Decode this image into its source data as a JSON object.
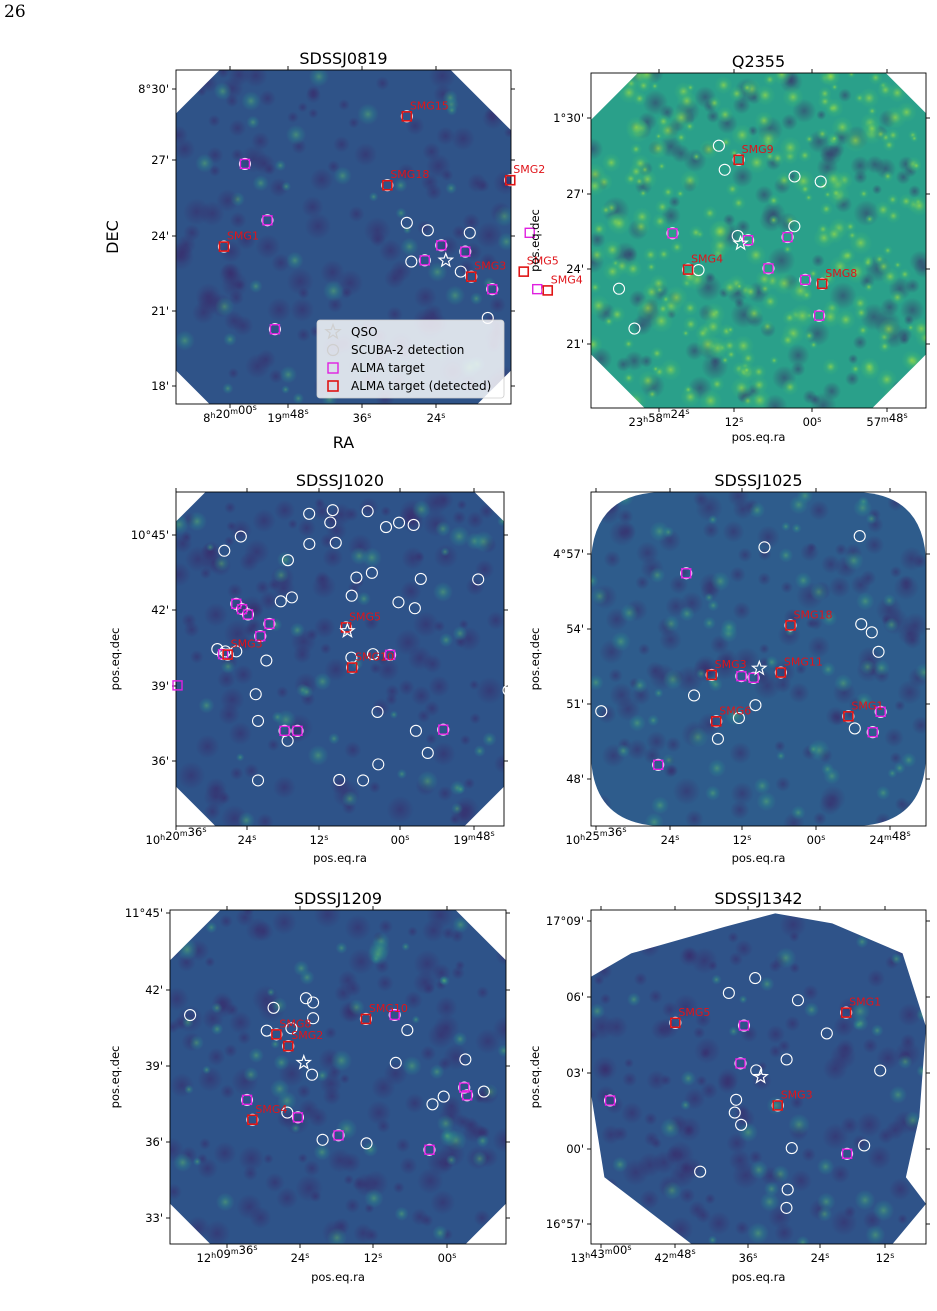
{
  "page_number": "26",
  "legend": {
    "qso": "QSO",
    "scuba": "SCUBA-2 detection",
    "alma": "ALMA target",
    "alma_det": "ALMA target (detected)"
  },
  "colors": {
    "map_base": "#2e5389",
    "alma_target": "#e020e0",
    "alma_detected": "#e01414",
    "smg_label": "#e0141a",
    "scuba": "#ffffff"
  },
  "chart_data": [
    {
      "type": "scatter",
      "title": "SDSSJ0819",
      "xlabel": "RA",
      "ylabel": "DEC",
      "xticks": [
        "8h20m00s",
        "19m48s",
        "36s",
        "24s"
      ],
      "yticks": [
        "8°30'",
        "27'",
        "24'",
        "21'",
        "18'"
      ],
      "ra_range_deg": [
        125.036,
        124.8125
      ],
      "dec_range_deg": [
        8.2833,
        8.55
      ],
      "qso": [
        124.856,
        8.398
      ],
      "scuba": [
        [
          124.882,
          8.428
        ],
        [
          124.868,
          8.422
        ],
        [
          124.84,
          8.42
        ],
        [
          124.879,
          8.397
        ],
        [
          124.846,
          8.389
        ],
        [
          124.828,
          8.352
        ]
      ],
      "alma": [
        [
          124.99,
          8.475
        ],
        [
          124.975,
          8.43
        ],
        [
          124.87,
          8.398
        ],
        [
          124.859,
          8.41
        ],
        [
          124.843,
          8.405
        ],
        [
          124.825,
          8.375
        ],
        [
          124.8,
          8.42
        ],
        [
          124.795,
          8.375
        ],
        [
          124.97,
          8.343
        ]
      ],
      "alma_det": [
        {
          "ra": 124.882,
          "dec": 8.513,
          "label": "SMG15"
        },
        {
          "ra": 124.895,
          "dec": 8.458,
          "label": "SMG18"
        },
        {
          "ra": 124.813,
          "dec": 8.462,
          "label": "SMG2"
        },
        {
          "ra": 125.004,
          "dec": 8.409,
          "label": "SMG1"
        },
        {
          "ra": 124.839,
          "dec": 8.385,
          "label": "SMG3"
        },
        {
          "ra": 124.804,
          "dec": 8.389,
          "label": "SMG5"
        },
        {
          "ra": 124.788,
          "dec": 8.374,
          "label": "SMG4"
        }
      ]
    },
    {
      "type": "scatter",
      "title": "Q2355",
      "xlabel": "pos.eq.ra",
      "ylabel": "pos.eq.dec",
      "xticks": [
        "23h58m24s",
        "12s",
        "00s",
        "57m48s"
      ],
      "yticks": [
        "1°30'",
        "27'",
        "24'",
        "21'"
      ],
      "ra_range_deg": [
        359.647,
        359.4065
      ],
      "dec_range_deg": [
        1.3106,
        1.5294
      ],
      "qso": [
        359.5396,
        1.4181
      ],
      "scuba": [
        [
          359.5552,
          1.4819
        ],
        [
          359.551,
          1.4662
        ],
        [
          359.5009,
          1.4618
        ],
        [
          359.4821,
          1.4585
        ],
        [
          359.5417,
          1.423
        ],
        [
          359.5698,
          1.4007
        ],
        [
          359.6269,
          1.3885
        ],
        [
          359.6158,
          1.3625
        ],
        [
          359.501,
          1.4293
        ]
      ],
      "alma": [
        [
          359.5885,
          1.4247
        ],
        [
          359.5342,
          1.4202
        ],
        [
          359.5059,
          1.4222
        ],
        [
          359.5196,
          1.4018
        ],
        [
          359.4932,
          1.3943
        ],
        [
          359.4832,
          1.3709
        ]
      ],
      "alma_det": [
        {
          "ra": 359.541,
          "dec": 1.4727,
          "label": "SMG9"
        },
        {
          "ra": 359.5773,
          "dec": 1.401,
          "label": "SMG4"
        },
        {
          "ra": 359.481,
          "dec": 1.3917,
          "label": "SMG8"
        }
      ]
    },
    {
      "type": "scatter",
      "title": "SDSSJ1020",
      "xlabel": "pos.eq.ra",
      "ylabel": "pos.eq.dec",
      "xticks": [
        "10h20m36s",
        "24s",
        "12s",
        "00s",
        "19m48s"
      ],
      "yticks": [
        "10°45'",
        "42'",
        "39'",
        "36'"
      ],
      "ra_range_deg": [
        155.1545,
        154.9385
      ],
      "dec_range_deg": [
        10.5493,
        10.7683
      ],
      "qso": [
        155.0416,
        10.6772
      ],
      "scuba": [
        [
          155.0668,
          10.754
        ],
        [
          155.0513,
          10.7564
        ],
        [
          155.0529,
          10.7483
        ],
        [
          155.0283,
          10.7557
        ],
        [
          155.0162,
          10.7453
        ],
        [
          155.0076,
          10.7482
        ],
        [
          154.998,
          10.7467
        ],
        [
          155.1118,
          10.7391
        ],
        [
          155.1227,
          10.7298
        ],
        [
          155.0667,
          10.7342
        ],
        [
          155.0493,
          10.735
        ],
        [
          155.0808,
          10.7236
        ],
        [
          155.0255,
          10.7153
        ],
        [
          155.0357,
          10.7122
        ],
        [
          154.9933,
          10.7113
        ],
        [
          154.9555,
          10.711
        ],
        [
          155.0782,
          10.6992
        ],
        [
          155.0855,
          10.6966
        ],
        [
          155.0388,
          10.7003
        ],
        [
          155.008,
          10.696
        ],
        [
          154.9972,
          10.6921
        ],
        [
          155.122,
          10.6638
        ],
        [
          155.1273,
          10.6653
        ],
        [
          155.1148,
          10.6638
        ],
        [
          155.039,
          10.6597
        ],
        [
          155.0248,
          10.662
        ],
        [
          155.095,
          10.6578
        ],
        [
          154.9355,
          10.6383
        ],
        [
          155.102,
          10.6357
        ],
        [
          155.0218,
          10.6241
        ],
        [
          155.1005,
          10.6182
        ],
        [
          154.9965,
          10.6117
        ],
        [
          155.081,
          10.6052
        ],
        [
          154.9887,
          10.5972
        ],
        [
          155.0213,
          10.5897
        ],
        [
          155.1005,
          10.5792
        ],
        [
          155.047,
          10.5795
        ],
        [
          155.0313,
          10.5792
        ]
      ],
      "alma": [
        [
          155.1148,
          10.695
        ],
        [
          155.111,
          10.6915
        ],
        [
          155.1071,
          10.688
        ],
        [
          155.093,
          10.6818
        ],
        [
          155.099,
          10.6738
        ],
        [
          155.0135,
          10.6615
        ],
        [
          155.083,
          10.6117
        ],
        [
          155.0745,
          10.6117
        ],
        [
          154.9785,
          10.6125
        ],
        [
          155.1235,
          10.662
        ]
      ],
      "alma_square_only": [
        [
          155.1535,
          10.6415
        ]
      ],
      "alma_det": [
        {
          "ra": 155.0425,
          "dec": 10.6795,
          "label": "SMG5"
        },
        {
          "ra": 155.0385,
          "dec": 10.6532,
          "label": "SMG10"
        },
        {
          "ra": 155.1205,
          "dec": 10.6617,
          "label": "SMG3"
        }
      ]
    },
    {
      "type": "scatter",
      "title": "SDSSJ1025",
      "xlabel": "pos.eq.ra",
      "ylabel": "pos.eq.dec",
      "xticks": [
        "10h25m36s",
        "24s",
        "12s",
        "00s",
        "24m48s"
      ],
      "yticks": [
        "4°57'",
        "54'",
        "51'",
        "48'"
      ],
      "ra_range_deg": [
        156.4125,
        156.1937
      ],
      "dec_range_deg": [
        4.7742,
        4.9953
      ],
      "qso": [
        156.3026,
        4.8785
      ],
      "scuba": [
        [
          156.2992,
          4.9587
        ],
        [
          156.237,
          4.9661
        ],
        [
          156.236,
          4.9078
        ],
        [
          156.2291,
          4.9024
        ],
        [
          156.2247,
          4.8895
        ],
        [
          156.3452,
          4.8606
        ],
        [
          156.3051,
          4.8542
        ],
        [
          156.3159,
          4.8457
        ],
        [
          156.4058,
          4.8502
        ],
        [
          156.3296,
          4.8319
        ],
        [
          156.2402,
          4.8388
        ]
      ],
      "alma": [
        [
          156.3503,
          4.9415
        ],
        [
          156.3143,
          4.8734
        ],
        [
          156.3063,
          4.8723
        ],
        [
          156.2233,
          4.8498
        ],
        [
          156.2285,
          4.8363
        ],
        [
          156.3686,
          4.8147
        ]
      ],
      "alma_det": [
        {
          "ra": 156.2822,
          "dec": 4.907,
          "label": "SMG18"
        },
        {
          "ra": 156.3337,
          "dec": 4.8742,
          "label": "SMG3"
        },
        {
          "ra": 156.2885,
          "dec": 4.8758,
          "label": "SMG11"
        },
        {
          "ra": 156.2444,
          "dec": 4.8468,
          "label": "SMG1"
        },
        {
          "ra": 156.3307,
          "dec": 4.8435,
          "label": "SMG6"
        }
      ]
    },
    {
      "type": "scatter",
      "title": "SDSSJ1209",
      "xlabel": "pos.eq.ra",
      "ylabel": "pos.eq.dec",
      "xticks": [
        "12h09m36s",
        "24s",
        "12s",
        "00s"
      ],
      "yticks": [
        "11°45'",
        "42'",
        "39'",
        "36'",
        "33'"
      ],
      "ra_range_deg": [
        182.4435,
        182.231
      ],
      "dec_range_deg": [
        11.5156,
        11.7492
      ],
      "qso": [
        182.3589,
        11.6424
      ],
      "scuba": [
        [
          182.4308,
          11.6757
        ],
        [
          182.378,
          11.6808
        ],
        [
          182.3575,
          11.6875
        ],
        [
          182.353,
          11.6845
        ],
        [
          182.353,
          11.6735
        ],
        [
          182.3823,
          11.6648
        ],
        [
          182.3667,
          11.6665
        ],
        [
          182.3537,
          11.634
        ],
        [
          182.2934,
          11.6652
        ],
        [
          182.3007,
          11.6423
        ],
        [
          182.2567,
          11.6447
        ],
        [
          182.2704,
          11.6187
        ],
        [
          182.2775,
          11.6133
        ],
        [
          182.245,
          11.6222
        ],
        [
          182.3693,
          11.6075
        ],
        [
          182.347,
          11.5885
        ],
        [
          182.3192,
          11.586
        ]
      ],
      "alma": [
        [
          182.3948,
          11.6164
        ],
        [
          182.3626,
          11.6042
        ],
        [
          182.3369,
          11.5916
        ],
        [
          182.3014,
          11.6758
        ],
        [
          182.2794,
          11.5815
        ],
        [
          182.2556,
          11.6196
        ],
        [
          182.2574,
          11.625
        ]
      ],
      "alma_det": [
        {
          "ra": 182.3196,
          "dec": 11.673,
          "label": "SMG10"
        },
        {
          "ra": 182.3762,
          "dec": 11.6622,
          "label": "SMG8"
        },
        {
          "ra": 182.3687,
          "dec": 11.654,
          "label": "SMG2"
        },
        {
          "ra": 182.3914,
          "dec": 11.6025,
          "label": "SMG4"
        }
      ]
    },
    {
      "type": "scatter",
      "title": "SDSSJ1342",
      "xlabel": "pos.eq.ra",
      "ylabel": "pos.eq.dec",
      "xticks": [
        "13h43m00s",
        "42m48s",
        "36s",
        "24s",
        "12s"
      ],
      "yticks": [
        "17°09'",
        "06'",
        "03'",
        "00'",
        "16°57'"
      ],
      "ra_range_deg": [
        205.254,
        205.0324
      ],
      "dec_range_deg": [
        16.9319,
        17.1614
      ],
      "qso": [
        205.1418,
        17.0468
      ],
      "scuba": [
        [
          205.1628,
          17.1044
        ],
        [
          205.1454,
          17.1146
        ],
        [
          205.1171,
          17.0994
        ],
        [
          205.098,
          17.0766
        ],
        [
          205.1246,
          17.0587
        ],
        [
          205.1447,
          17.0512
        ],
        [
          205.158,
          17.031
        ],
        [
          205.1589,
          17.0222
        ],
        [
          205.1547,
          17.0138
        ],
        [
          205.0627,
          17.0511
        ],
        [
          205.0733,
          16.9996
        ],
        [
          205.1212,
          16.9978
        ],
        [
          205.1818,
          16.9816
        ],
        [
          205.1239,
          16.9693
        ],
        [
          205.1247,
          16.9567
        ]
      ],
      "alma": [
        [
          205.1528,
          17.082
        ],
        [
          205.1551,
          17.056
        ],
        [
          205.2414,
          17.0305
        ],
        [
          205.0846,
          16.9939
        ]
      ],
      "alma_det": [
        {
          "ra": 205.0852,
          "dec": 17.0909,
          "label": "SMG1"
        },
        {
          "ra": 205.1982,
          "dec": 17.0839,
          "label": "SMG5"
        },
        {
          "ra": 205.1305,
          "dec": 17.0271,
          "label": "SMG3"
        }
      ]
    }
  ]
}
